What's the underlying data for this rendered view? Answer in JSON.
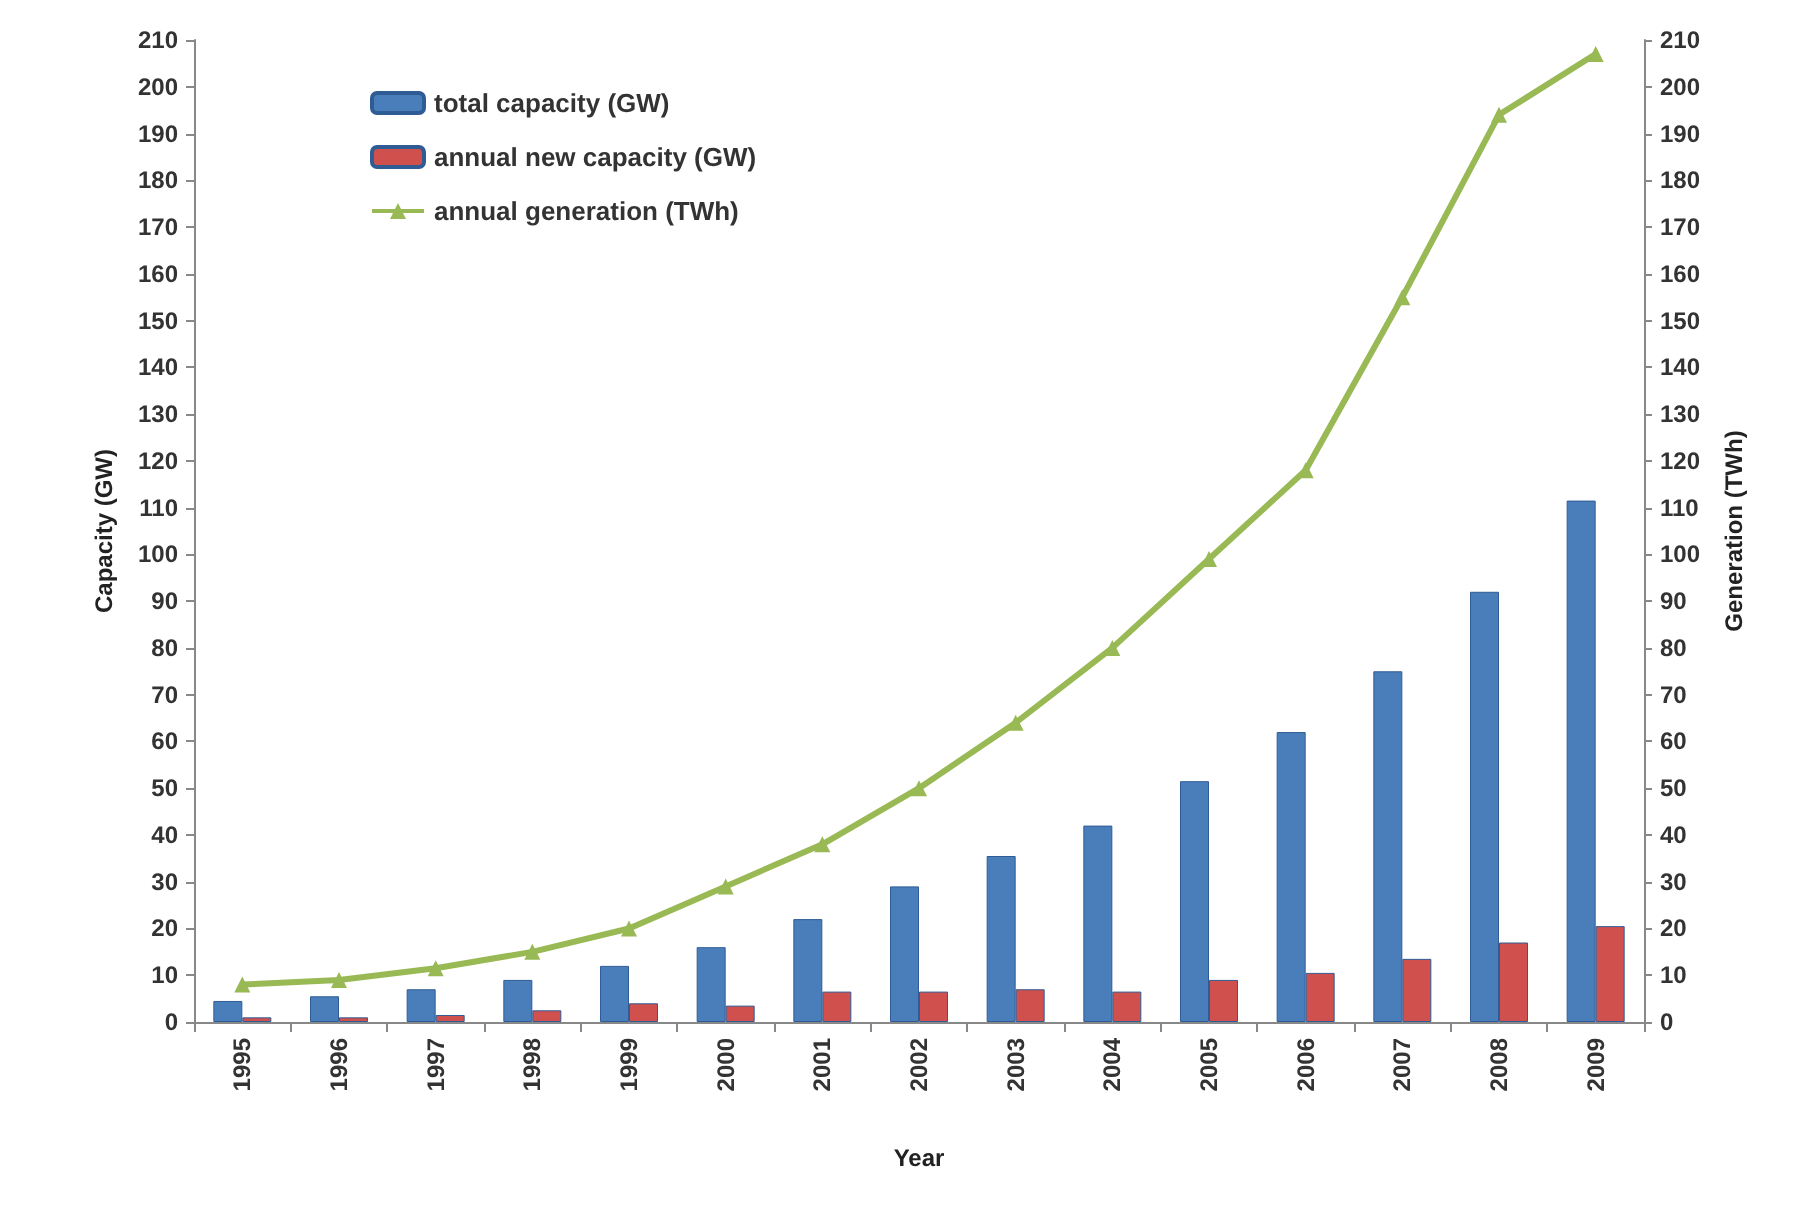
{
  "chart_data": {
    "type": "bar",
    "xlabel": "Year",
    "ylabel": "Capacity (GW)",
    "y2label": "Generation (TWh)",
    "categories": [
      "1995",
      "1996",
      "1997",
      "1998",
      "1999",
      "2000",
      "2001",
      "2002",
      "2003",
      "2004",
      "2005",
      "2006",
      "2007",
      "2008",
      "2009"
    ],
    "series": [
      {
        "name": "total capacity (GW)",
        "color": "#4a7ebb",
        "values": [
          4.5,
          5.5,
          7,
          9,
          12,
          16,
          22,
          29,
          35.5,
          42,
          51.5,
          62,
          75,
          92,
          111.5
        ]
      },
      {
        "name": "annual new capacity (GW)",
        "color": "#d0504d",
        "values": [
          1,
          1,
          1.5,
          2.5,
          4,
          3.5,
          6.5,
          6.5,
          7,
          6.5,
          9,
          10.5,
          13.5,
          17,
          20.5
        ]
      },
      {
        "name": "annual generation (TWh)",
        "type": "line",
        "axis": "y2",
        "marker": "triangle",
        "color": "#98b954",
        "values": [
          8,
          9,
          11.5,
          15,
          20,
          29,
          38,
          50,
          64,
          80,
          99,
          118,
          155,
          194,
          207
        ]
      }
    ],
    "ylim": [
      0,
      210
    ],
    "yticks": [
      0,
      10,
      20,
      30,
      40,
      50,
      60,
      70,
      80,
      90,
      100,
      110,
      120,
      130,
      140,
      150,
      160,
      170,
      180,
      190,
      200,
      210
    ],
    "y2lim": [
      0,
      210
    ],
    "y2ticks": [
      0,
      10,
      20,
      30,
      40,
      50,
      60,
      70,
      80,
      90,
      100,
      110,
      120,
      130,
      140,
      150,
      160,
      170,
      180,
      190,
      200,
      210
    ],
    "grid": false,
    "legend": "top left"
  }
}
